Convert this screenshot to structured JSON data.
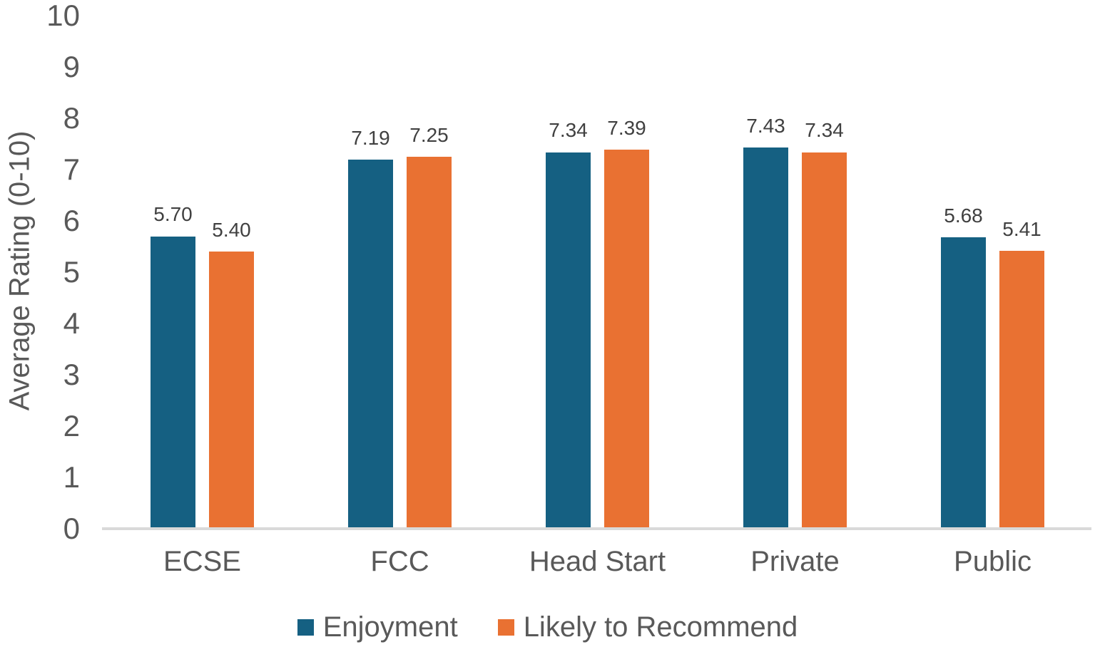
{
  "chart_data": {
    "type": "bar",
    "title": "",
    "ylabel": "Average Rating (0-10)",
    "xlabel": "",
    "ylim": [
      0,
      10
    ],
    "yticks": [
      0,
      1,
      2,
      3,
      4,
      5,
      6,
      7,
      8,
      9,
      10
    ],
    "grid": false,
    "legend_position": "bottom",
    "categories": [
      "ECSE",
      "FCC",
      "Head Start",
      "Private",
      "Public"
    ],
    "series": [
      {
        "name": "Enjoyment",
        "color": "#156082",
        "values": [
          5.7,
          7.19,
          7.34,
          7.43,
          5.68
        ],
        "labels": [
          "5.70",
          "7.19",
          "7.34",
          "7.43",
          "5.68"
        ]
      },
      {
        "name": "Likely to Recommend",
        "color": "#E97132",
        "values": [
          5.4,
          7.25,
          7.39,
          7.34,
          5.41
        ],
        "labels": [
          "5.40",
          "7.25",
          "7.39",
          "7.34",
          "5.41"
        ]
      }
    ]
  },
  "style": {
    "axis_text_color": "#595959",
    "data_label_color": "#404040",
    "axis_line_color": "#D9D9D9",
    "background": "#FFFFFF"
  }
}
